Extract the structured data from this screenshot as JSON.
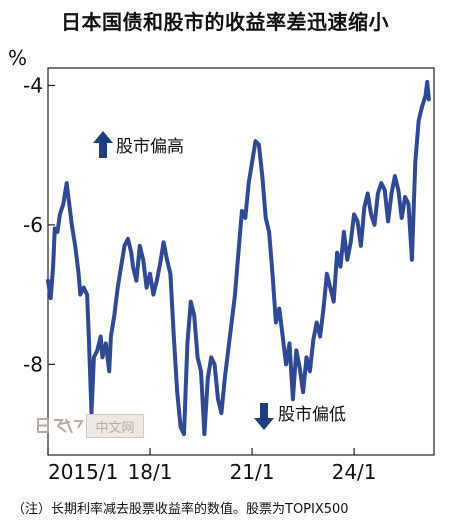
{
  "chart_data": {
    "type": "line",
    "title": "日本国债和股市的收益率差迅速缩小",
    "unit": "%",
    "ylim": [
      -9.3,
      -3.75
    ],
    "xlim": [
      0,
      11.35
    ],
    "yticks": [
      {
        "value": -4,
        "label": "-4"
      },
      {
        "value": -6,
        "label": "-6"
      },
      {
        "value": -8,
        "label": "-8"
      }
    ],
    "xticks": [
      {
        "value": 0,
        "label": "2015/1"
      },
      {
        "value": 3,
        "label": "18/1"
      },
      {
        "value": 6,
        "label": "21/1"
      },
      {
        "value": 9,
        "label": "24/1"
      }
    ],
    "series": [
      {
        "color": "#2e4a94",
        "x": [
          0.0,
          0.08,
          0.15,
          0.2,
          0.28,
          0.35,
          0.45,
          0.55,
          0.6,
          0.7,
          0.8,
          0.9,
          0.95,
          1.05,
          1.15,
          1.2,
          1.28,
          1.35,
          1.45,
          1.55,
          1.6,
          1.7,
          1.8,
          1.85,
          1.95,
          2.05,
          2.15,
          2.25,
          2.35,
          2.45,
          2.5,
          2.6,
          2.7,
          2.8,
          2.9,
          3.0,
          3.1,
          3.2,
          3.3,
          3.4,
          3.5,
          3.6,
          3.7,
          3.8,
          3.9,
          4.0,
          4.1,
          4.2,
          4.3,
          4.4,
          4.5,
          4.6,
          4.7,
          4.8,
          4.9,
          5.0,
          5.1,
          5.2,
          5.3,
          5.4,
          5.5,
          5.6,
          5.7,
          5.8,
          5.9,
          6.0,
          6.1,
          6.2,
          6.3,
          6.4,
          6.5,
          6.6,
          6.7,
          6.8,
          6.9,
          7.0,
          7.1,
          7.2,
          7.3,
          7.4,
          7.5,
          7.6,
          7.7,
          7.8,
          7.9,
          8.0,
          8.1,
          8.2,
          8.3,
          8.4,
          8.5,
          8.6,
          8.7,
          8.8,
          8.9,
          9.0,
          9.1,
          9.2,
          9.3,
          9.4,
          9.5,
          9.6,
          9.7,
          9.8,
          9.9,
          10.0,
          10.1,
          10.2,
          10.3,
          10.4,
          10.5,
          10.6,
          10.7,
          10.8,
          10.9,
          11.0,
          11.1,
          11.15,
          11.2
        ],
        "values": [
          -6.8,
          -7.05,
          -6.6,
          -6.05,
          -6.1,
          -5.85,
          -5.7,
          -5.4,
          -5.6,
          -6.0,
          -6.3,
          -6.7,
          -7.0,
          -6.9,
          -7.0,
          -7.6,
          -8.7,
          -7.9,
          -7.8,
          -7.6,
          -7.9,
          -7.7,
          -8.1,
          -7.6,
          -7.3,
          -6.9,
          -6.6,
          -6.3,
          -6.2,
          -6.4,
          -6.6,
          -6.8,
          -6.3,
          -6.5,
          -6.9,
          -6.7,
          -7.0,
          -6.8,
          -6.55,
          -6.25,
          -6.5,
          -6.7,
          -7.6,
          -8.4,
          -8.9,
          -9.0,
          -7.7,
          -7.1,
          -7.3,
          -7.9,
          -8.1,
          -9.0,
          -8.2,
          -7.9,
          -8.0,
          -8.5,
          -8.7,
          -8.2,
          -7.8,
          -7.4,
          -7.0,
          -6.4,
          -5.8,
          -5.9,
          -5.4,
          -5.1,
          -4.8,
          -4.85,
          -5.3,
          -5.9,
          -6.1,
          -6.7,
          -7.4,
          -7.2,
          -7.6,
          -8.0,
          -7.7,
          -8.5,
          -7.8,
          -8.05,
          -8.4,
          -7.9,
          -8.1,
          -7.65,
          -7.4,
          -7.6,
          -7.2,
          -6.7,
          -6.9,
          -7.1,
          -6.4,
          -6.6,
          -6.1,
          -6.5,
          -6.25,
          -5.85,
          -5.95,
          -6.3,
          -5.75,
          -5.55,
          -5.85,
          -6.0,
          -5.55,
          -5.4,
          -5.5,
          -5.95,
          -5.55,
          -5.3,
          -5.5,
          -5.9,
          -5.6,
          -5.7,
          -6.5,
          -5.1,
          -4.5,
          -4.3,
          -4.15,
          -3.95,
          -4.2
        ]
      }
    ],
    "annotations": [
      {
        "text": "股市偏高",
        "arrow": "up"
      },
      {
        "text": "股市偏低",
        "arrow": "down"
      }
    ]
  },
  "note": "（注）长期利率减去股票收益率的数值。股票为TOPIX500",
  "watermark": "中文网"
}
